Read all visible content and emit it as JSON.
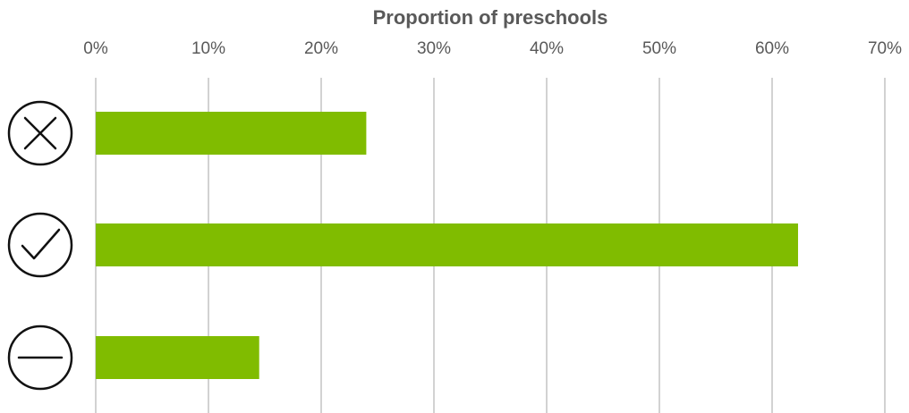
{
  "chart_data": {
    "type": "bar",
    "orientation": "horizontal",
    "title": "Proportion of preschools",
    "xlabel": "Proportion of preschools",
    "ylabel": "",
    "xlim": [
      0,
      70
    ],
    "x_tick_values": [
      0,
      10,
      20,
      30,
      40,
      50,
      60,
      70
    ],
    "x_tick_labels": [
      "0%",
      "10%",
      "20%",
      "30%",
      "40%",
      "50%",
      "60%",
      "70%"
    ],
    "x_axis_position": "top",
    "grid": "vertical",
    "legend": "none",
    "categories": [
      {
        "icon": "cross-circle-icon",
        "value": 24
      },
      {
        "icon": "check-circle-icon",
        "value": 62.3
      },
      {
        "icon": "minus-circle-icon",
        "value": 14.5
      }
    ],
    "values": [
      24,
      62.3,
      14.5
    ],
    "colors": {
      "bar": "#80bc00",
      "gridline": "#a6a6a6",
      "text": "#595959",
      "icon": "#111111"
    }
  }
}
